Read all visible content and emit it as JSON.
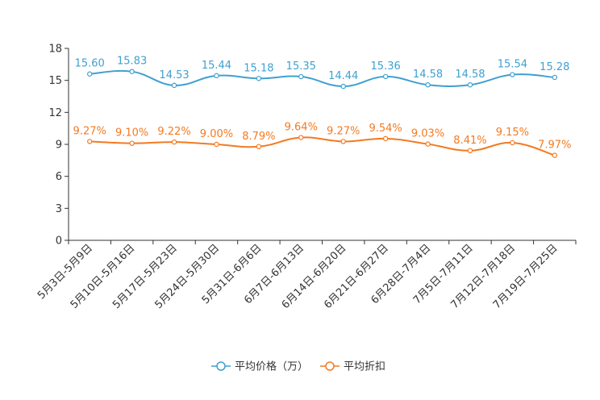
{
  "chart_data": {
    "type": "line",
    "title": "",
    "xlabel": "",
    "ylabel": "",
    "ylim": [
      0,
      18
    ],
    "yticks": [
      0,
      3,
      6,
      9,
      12,
      15,
      18
    ],
    "grid": false,
    "legend_position": "bottom-center",
    "categories": [
      "5月3日-5月9日",
      "5月10日-5月16日",
      "5月17日-5月23日",
      "5月24日-5月30日",
      "5月31日-6月6日",
      "6月7日-6月13日",
      "6月14日-6月20日",
      "6月21日-6月27日",
      "6月28日-7月4日",
      "7月5日-7月11日",
      "7月12日-7月18日",
      "7月19日-7月25日"
    ],
    "series": [
      {
        "name": "平均价格（万）",
        "color": "#3fa0d0",
        "values": [
          15.6,
          15.83,
          14.53,
          15.44,
          15.18,
          15.35,
          14.44,
          15.36,
          14.58,
          14.58,
          15.54,
          15.28
        ],
        "labels": [
          "15.60",
          "15.83",
          "14.53",
          "15.44",
          "15.18",
          "15.35",
          "14.44",
          "15.36",
          "14.58",
          "14.58",
          "15.54",
          "15.28"
        ]
      },
      {
        "name": "平均折扣",
        "color": "#f47a20",
        "values": [
          9.27,
          9.1,
          9.22,
          9.0,
          8.79,
          9.64,
          9.27,
          9.54,
          9.03,
          8.41,
          9.15,
          7.97
        ],
        "labels": [
          "9.27%",
          "9.10%",
          "9.22%",
          "9.00%",
          "8.79%",
          "9.64%",
          "9.27%",
          "9.54%",
          "9.03%",
          "8.41%",
          "9.15%",
          "7.97%"
        ]
      }
    ]
  }
}
